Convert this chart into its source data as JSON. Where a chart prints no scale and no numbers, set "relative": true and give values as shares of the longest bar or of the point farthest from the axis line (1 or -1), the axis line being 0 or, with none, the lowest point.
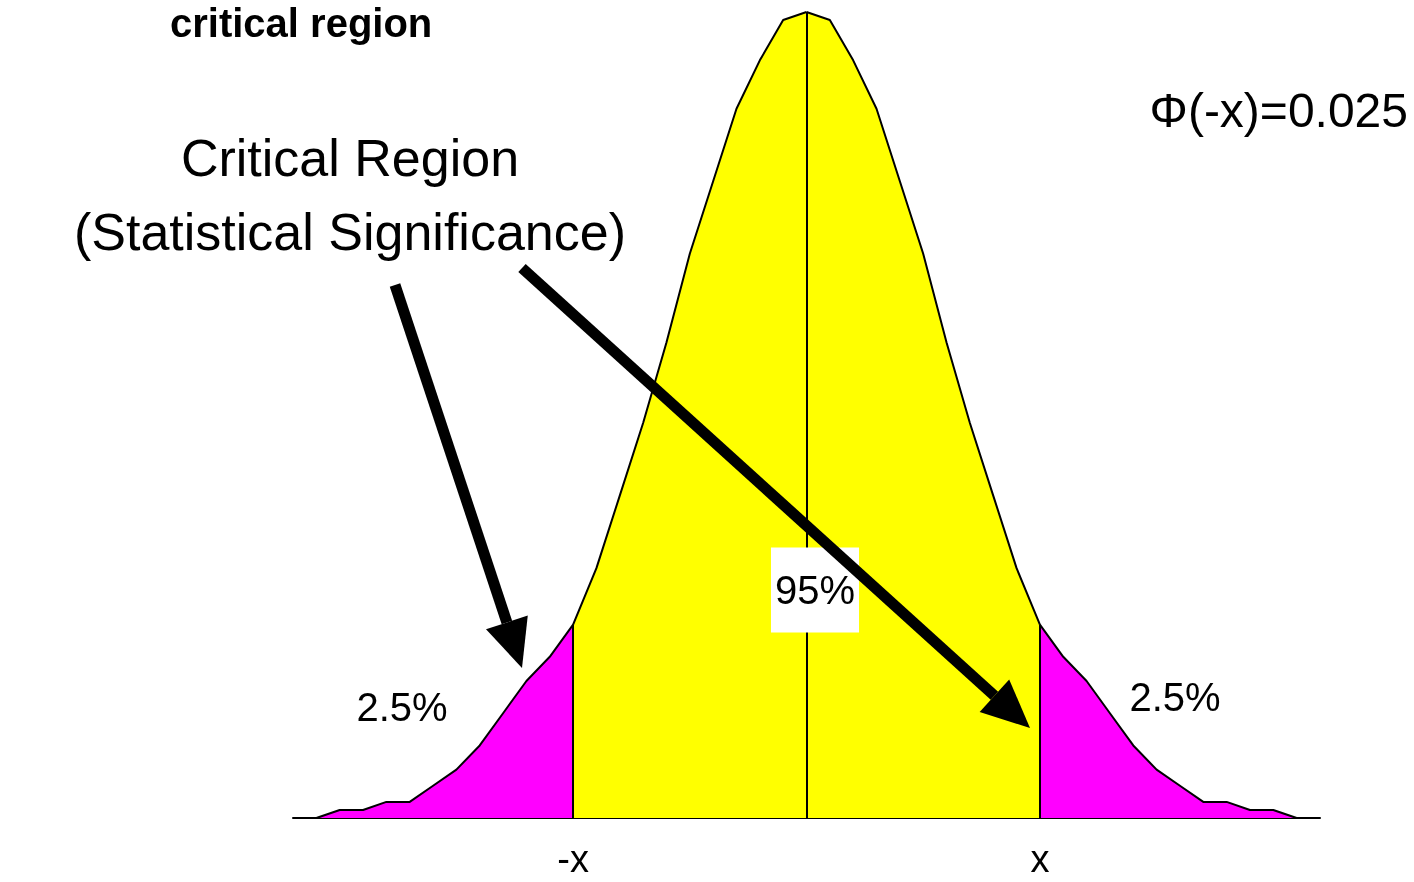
{
  "chart_data": {
    "type": "area",
    "title": "critical region",
    "relative": true,
    "categories": [
      null,
      null,
      null,
      null,
      null,
      null,
      null,
      null,
      null,
      null,
      null,
      null,
      "-x",
      null,
      null,
      null,
      null,
      null,
      null,
      null,
      null,
      null,
      null,
      null,
      null,
      null,
      null,
      null,
      null,
      null,
      null,
      null,
      "x",
      null,
      null,
      null,
      null,
      null,
      null,
      null,
      null,
      null,
      null,
      null,
      null
    ],
    "series": [
      {
        "color": "#ff00ff",
        "values": [
          0,
          0,
          0.01,
          0.01,
          0.02,
          0.02,
          0.04,
          0.06,
          0.09,
          0.13,
          0.17,
          0.2,
          0.24,
          null,
          null,
          null,
          null,
          null,
          null,
          null,
          null,
          null,
          null,
          null,
          null,
          null,
          null,
          null,
          null,
          null,
          null,
          null,
          null,
          null,
          null,
          null,
          null,
          null,
          null,
          null,
          null,
          null,
          null,
          null,
          null
        ]
      },
      {
        "color": "#ffff00",
        "values": [
          null,
          null,
          null,
          null,
          null,
          null,
          null,
          null,
          null,
          null,
          null,
          null,
          0.24,
          0.31,
          0.4,
          0.49,
          0.59,
          0.7,
          0.79,
          0.88,
          0.94,
          0.99,
          1,
          null,
          null,
          null,
          null,
          null,
          null,
          null,
          null,
          null,
          null,
          null,
          null,
          null,
          null,
          null,
          null,
          null,
          null,
          null,
          null,
          null,
          null
        ]
      },
      {
        "color": "#ffff00",
        "values": [
          null,
          null,
          null,
          null,
          null,
          null,
          null,
          null,
          null,
          null,
          null,
          null,
          null,
          null,
          null,
          null,
          null,
          null,
          null,
          null,
          null,
          null,
          1,
          0.99,
          0.94,
          0.88,
          0.79,
          0.7,
          0.59,
          0.49,
          0.4,
          0.31,
          0.24,
          null,
          null,
          null,
          null,
          null,
          null,
          null,
          null,
          null,
          null,
          null,
          null
        ]
      },
      {
        "color": "#ff00ff",
        "values": [
          null,
          null,
          null,
          null,
          null,
          null,
          null,
          null,
          null,
          null,
          null,
          null,
          null,
          null,
          null,
          null,
          null,
          null,
          null,
          null,
          null,
          null,
          null,
          null,
          null,
          null,
          null,
          null,
          null,
          null,
          null,
          null,
          0.24,
          0.2,
          0.17,
          0.13,
          0.09,
          0.06,
          0.04,
          0.02,
          0.02,
          0.01,
          0.01,
          0,
          0
        ]
      }
    ],
    "annotations": [
      "95%",
      "2.5%",
      "2.5%",
      "Φ(-x)=0.025",
      "Critical Region\n(Statistical Significance)"
    ]
  }
}
